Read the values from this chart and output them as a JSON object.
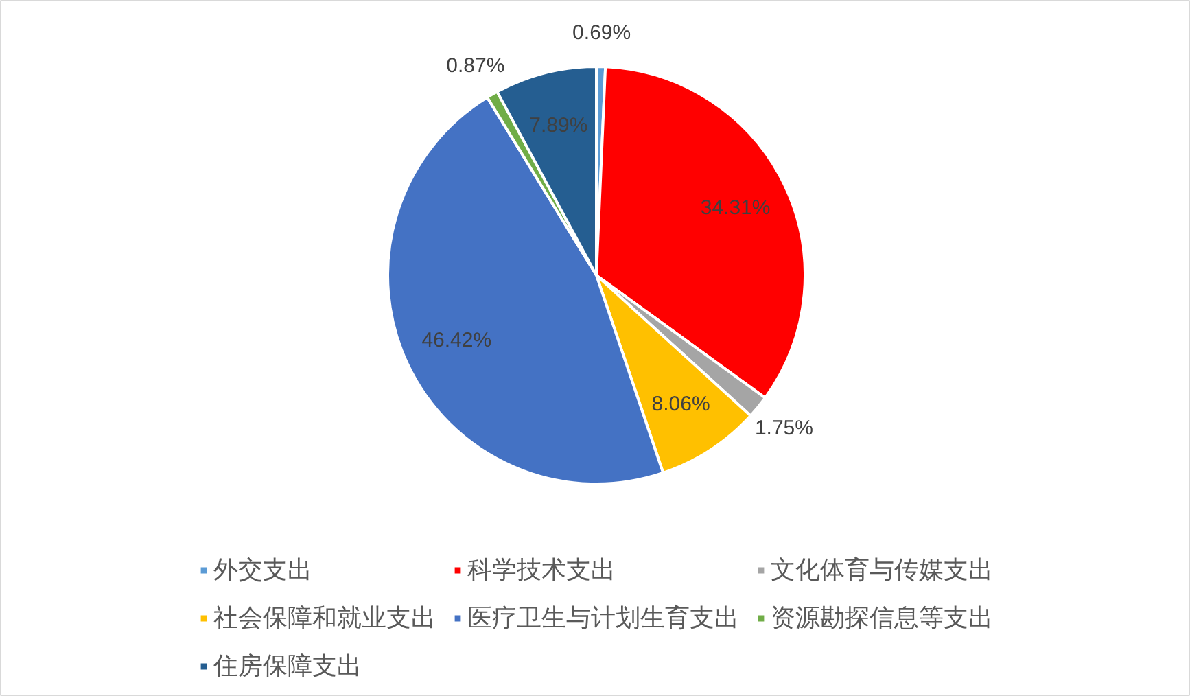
{
  "chart_data": {
    "type": "pie",
    "categories": [
      "外交支出",
      "科学技术支出",
      "文化体育与传媒支出",
      "社会保障和就业支出",
      "医疗卫生与计划生育支出",
      "资源勘探信息等支出",
      "住房保障支出"
    ],
    "values": [
      0.69,
      34.31,
      1.75,
      8.06,
      46.42,
      0.87,
      7.89
    ],
    "colors": [
      "#5b9bd5",
      "#ff0000",
      "#a5a5a5",
      "#ffc000",
      "#4472c4",
      "#70ad47",
      "#255e91"
    ],
    "value_labels": [
      "0.69%",
      "34.31%",
      "1.75%",
      "8.06%",
      "46.42%",
      "0.87%",
      "7.89%"
    ],
    "legend": "bottom"
  }
}
